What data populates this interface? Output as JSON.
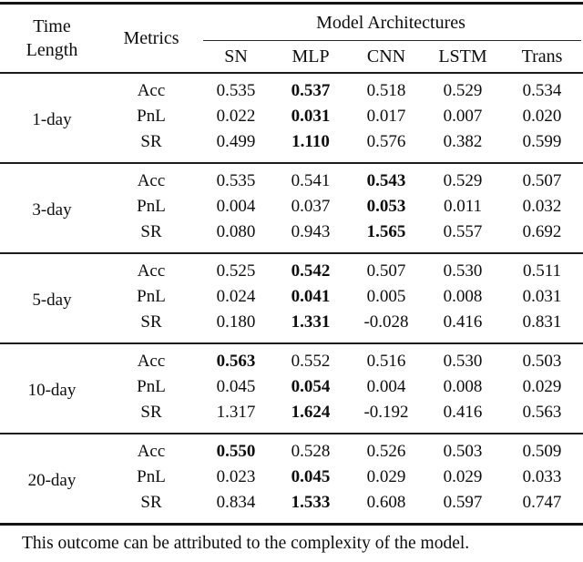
{
  "table": {
    "header": {
      "time_length_line1": "Time",
      "time_length_line2": "Length",
      "metrics_label": "Metrics",
      "group_label": "Model Architectures",
      "columns": [
        "SN",
        "MLP",
        "CNN",
        "LSTM",
        "Trans"
      ]
    },
    "blocks": [
      {
        "time_length": "1-day",
        "rows": [
          {
            "metric": "Acc",
            "values": [
              "0.535",
              "0.537",
              "0.518",
              "0.529",
              "0.534"
            ],
            "bold": 1
          },
          {
            "metric": "PnL",
            "values": [
              "0.022",
              "0.031",
              "0.017",
              "0.007",
              "0.020"
            ],
            "bold": 1
          },
          {
            "metric": "SR",
            "values": [
              "0.499",
              "1.110",
              "0.576",
              "0.382",
              "0.599"
            ],
            "bold": 1
          }
        ]
      },
      {
        "time_length": "3-day",
        "rows": [
          {
            "metric": "Acc",
            "values": [
              "0.535",
              "0.541",
              "0.543",
              "0.529",
              "0.507"
            ],
            "bold": 2
          },
          {
            "metric": "PnL",
            "values": [
              "0.004",
              "0.037",
              "0.053",
              "0.011",
              "0.032"
            ],
            "bold": 2
          },
          {
            "metric": "SR",
            "values": [
              "0.080",
              "0.943",
              "1.565",
              "0.557",
              "0.692"
            ],
            "bold": 2
          }
        ]
      },
      {
        "time_length": "5-day",
        "rows": [
          {
            "metric": "Acc",
            "values": [
              "0.525",
              "0.542",
              "0.507",
              "0.530",
              "0.511"
            ],
            "bold": 1
          },
          {
            "metric": "PnL",
            "values": [
              "0.024",
              "0.041",
              "0.005",
              "0.008",
              "0.031"
            ],
            "bold": 1
          },
          {
            "metric": "SR",
            "values": [
              "0.180",
              "1.331",
              "-0.028",
              "0.416",
              "0.831"
            ],
            "bold": 1
          }
        ]
      },
      {
        "time_length": "10-day",
        "rows": [
          {
            "metric": "Acc",
            "values": [
              "0.563",
              "0.552",
              "0.516",
              "0.530",
              "0.503"
            ],
            "bold": 0
          },
          {
            "metric": "PnL",
            "values": [
              "0.045",
              "0.054",
              "0.004",
              "0.008",
              "0.029"
            ],
            "bold": 1
          },
          {
            "metric": "SR",
            "values": [
              "1.317",
              "1.624",
              "-0.192",
              "0.416",
              "0.563"
            ],
            "bold": 1
          }
        ]
      },
      {
        "time_length": "20-day",
        "rows": [
          {
            "metric": "Acc",
            "values": [
              "0.550",
              "0.528",
              "0.526",
              "0.503",
              "0.509"
            ],
            "bold": 0
          },
          {
            "metric": "PnL",
            "values": [
              "0.023",
              "0.045",
              "0.029",
              "0.029",
              "0.033"
            ],
            "bold": 1
          },
          {
            "metric": "SR",
            "values": [
              "0.834",
              "1.533",
              "0.608",
              "0.597",
              "0.747"
            ],
            "bold": 1
          }
        ]
      }
    ]
  },
  "caption": "This outcome can be attributed to the complexity of the model."
}
